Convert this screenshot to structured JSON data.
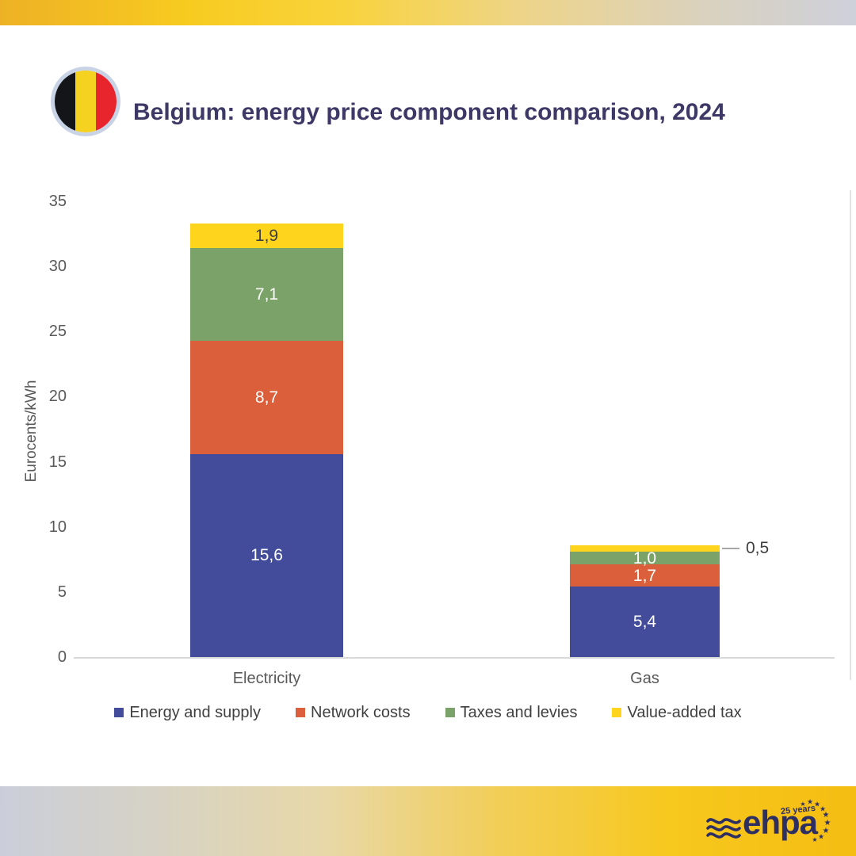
{
  "header": {
    "title": "Belgium: energy price component comparison, 2024",
    "flag_colors": {
      "black": "#141519",
      "yellow": "#F5D120",
      "red": "#E8242C",
      "ring": "#C9D3E6"
    }
  },
  "chart_data": {
    "type": "bar",
    "stacked": true,
    "categories": [
      "Electricity",
      "Gas"
    ],
    "series": [
      {
        "name": "Energy and supply",
        "color": "#424C9B",
        "label_color": "#FFFFFF",
        "values": [
          15.6,
          5.4
        ],
        "value_labels": [
          "15,6",
          "5,4"
        ]
      },
      {
        "name": "Network costs",
        "color": "#DB5F3B",
        "label_color": "#FFFFFF",
        "values": [
          8.7,
          1.7
        ],
        "value_labels": [
          "8,7",
          "1,7"
        ]
      },
      {
        "name": "Taxes and levies",
        "color": "#7AA269",
        "label_color": "#FFFFFF",
        "values": [
          7.1,
          1.0
        ],
        "value_labels": [
          "7,1",
          "1,0"
        ]
      },
      {
        "name": "Value-added tax",
        "color": "#FFD41C",
        "label_color": "#3F3F3F",
        "values": [
          1.9,
          0.5
        ],
        "value_labels": [
          "1,9",
          "0,5"
        ],
        "callout_categories": [
          "Gas"
        ]
      }
    ],
    "ylabel": "Eurocents/kWh",
    "yticks": [
      0,
      5,
      10,
      15,
      20,
      25,
      30,
      35
    ],
    "ylim": [
      0,
      35
    ],
    "grid": false,
    "legend_position": "bottom"
  },
  "footer": {
    "logo_text": "ehpa",
    "logo_sub": "25 years"
  }
}
